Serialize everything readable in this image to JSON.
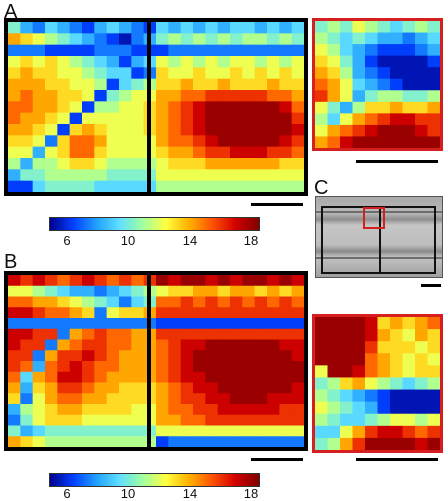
{
  "panels": {
    "a": "A",
    "b": "B",
    "c": "C"
  },
  "colorbar": {
    "ticks": [
      "6",
      "10",
      "14",
      "18"
    ],
    "tick_values": [
      6,
      10,
      14,
      18
    ],
    "range": [
      4.5,
      18.5
    ],
    "colors": [
      "#00008f",
      "#0040ff",
      "#20a0ff",
      "#60e0ff",
      "#a0ffa0",
      "#ffff40",
      "#ffb000",
      "#ff5000",
      "#d00000",
      "#800000"
    ]
  },
  "chart_data": [
    {
      "type": "heatmap",
      "panel": "A-main",
      "rows": 15,
      "cols": 24,
      "pattern": "two-region map: left with diagonal low band, right with high-value core",
      "values": [
        [
          10,
          8,
          7,
          9,
          8,
          7,
          6,
          8,
          9,
          8,
          7,
          6,
          9,
          8,
          9,
          8,
          9,
          8,
          9,
          9,
          8,
          9,
          8,
          9
        ],
        [
          14,
          13,
          12,
          11,
          10,
          9,
          8,
          7,
          6,
          5,
          7,
          8,
          10,
          11,
          10,
          11,
          10,
          11,
          10,
          11,
          11,
          10,
          11,
          10
        ],
        [
          7,
          7,
          7,
          6,
          6,
          6,
          6,
          7,
          7,
          7,
          6,
          6,
          6,
          7,
          7,
          7,
          7,
          7,
          7,
          7,
          7,
          7,
          7,
          7
        ],
        [
          12,
          13,
          12,
          13,
          12,
          11,
          10,
          9,
          8,
          6,
          8,
          9,
          12,
          11,
          12,
          11,
          12,
          11,
          12,
          12,
          11,
          12,
          11,
          12
        ],
        [
          13,
          14,
          13,
          13,
          12,
          12,
          11,
          10,
          9,
          9,
          6,
          7,
          13,
          12,
          12,
          13,
          12,
          12,
          13,
          12,
          13,
          12,
          13,
          12
        ],
        [
          14,
          14,
          14,
          13,
          13,
          12,
          12,
          11,
          6,
          9,
          10,
          11,
          13,
          13,
          14,
          13,
          13,
          14,
          13,
          13,
          13,
          14,
          13,
          13
        ],
        [
          14,
          15,
          14,
          14,
          13,
          13,
          12,
          6,
          10,
          11,
          12,
          12,
          14,
          14,
          15,
          15,
          16,
          16,
          16,
          16,
          16,
          15,
          15,
          14
        ],
        [
          15,
          15,
          14,
          14,
          13,
          12,
          6,
          11,
          11,
          12,
          12,
          13,
          14,
          15,
          16,
          17,
          18,
          18,
          18,
          18,
          18,
          18,
          17,
          15
        ],
        [
          15,
          14,
          14,
          13,
          12,
          6,
          12,
          12,
          12,
          12,
          12,
          13,
          14,
          15,
          16,
          17,
          18,
          18,
          18,
          18,
          18,
          18,
          18,
          16
        ],
        [
          14,
          14,
          13,
          12,
          6,
          13,
          14,
          13,
          12,
          12,
          12,
          13,
          14,
          15,
          16,
          17,
          18,
          18,
          18,
          18,
          18,
          18,
          18,
          17
        ],
        [
          13,
          13,
          12,
          7,
          13,
          15,
          15,
          14,
          12,
          12,
          12,
          12,
          14,
          15,
          15,
          16,
          17,
          18,
          18,
          18,
          18,
          18,
          17,
          16
        ],
        [
          12,
          12,
          8,
          12,
          13,
          15,
          15,
          13,
          12,
          12,
          12,
          12,
          13,
          14,
          14,
          15,
          16,
          16,
          17,
          17,
          17,
          16,
          16,
          15
        ],
        [
          11,
          8,
          11,
          11,
          12,
          13,
          13,
          12,
          11,
          11,
          11,
          11,
          12,
          13,
          13,
          13,
          14,
          14,
          14,
          14,
          14,
          14,
          13,
          13
        ],
        [
          8,
          10,
          10,
          11,
          11,
          11,
          11,
          11,
          10,
          10,
          10,
          10,
          12,
          12,
          12,
          12,
          12,
          12,
          12,
          12,
          12,
          12,
          12,
          12
        ],
        [
          6,
          6,
          9,
          10,
          10,
          10,
          10,
          9,
          9,
          9,
          9,
          9,
          11,
          11,
          11,
          11,
          11,
          11,
          11,
          11,
          11,
          11,
          11,
          11
        ]
      ]
    },
    {
      "type": "heatmap",
      "panel": "A-inset",
      "rows": 11,
      "cols": 10,
      "pattern": "zoomed junction: blue diagonal band crossing warmer regions",
      "values": [
        [
          10,
          11,
          10,
          12,
          11,
          10,
          9,
          10,
          11,
          10
        ],
        [
          11,
          10,
          9,
          10,
          9,
          8,
          8,
          7,
          8,
          9
        ],
        [
          12,
          11,
          9,
          8,
          7,
          6,
          6,
          6,
          7,
          8
        ],
        [
          13,
          12,
          10,
          8,
          6,
          5,
          5,
          5,
          5,
          6
        ],
        [
          14,
          13,
          11,
          8,
          7,
          6,
          5,
          5,
          5,
          5
        ],
        [
          15,
          14,
          12,
          9,
          8,
          7,
          6,
          5,
          5,
          5
        ],
        [
          16,
          14,
          12,
          8,
          10,
          11,
          11,
          10,
          10,
          11
        ],
        [
          12,
          10,
          8,
          11,
          13,
          13,
          14,
          13,
          13,
          14
        ],
        [
          11,
          9,
          12,
          14,
          15,
          16,
          17,
          17,
          16,
          16
        ],
        [
          12,
          14,
          15,
          16,
          17,
          18,
          18,
          18,
          17,
          16
        ],
        [
          14,
          15,
          17,
          18,
          18,
          18,
          18,
          18,
          18,
          18
        ]
      ]
    },
    {
      "type": "heatmap",
      "panel": "B-main",
      "rows": 16,
      "cols": 24,
      "pattern": "mostly high values with thin diagonal and horizontal low bands",
      "values": [
        [
          17,
          16,
          17,
          16,
          15,
          16,
          17,
          16,
          15,
          16,
          15,
          16,
          18,
          17,
          18,
          18,
          17,
          18,
          17,
          18,
          18,
          17,
          18,
          17
        ],
        [
          12,
          12,
          11,
          10,
          9,
          8,
          8,
          7,
          8,
          9,
          10,
          11,
          12,
          13,
          13,
          14,
          14,
          13,
          14,
          14,
          13,
          14,
          13,
          14
        ],
        [
          15,
          15,
          14,
          14,
          13,
          12,
          11,
          10,
          9,
          7,
          9,
          10,
          15,
          15,
          16,
          15,
          16,
          15,
          16,
          15,
          16,
          15,
          16,
          15
        ],
        [
          17,
          17,
          16,
          15,
          15,
          14,
          13,
          7,
          12,
          13,
          13,
          14,
          16,
          16,
          16,
          16,
          16,
          16,
          16,
          16,
          16,
          16,
          16,
          16
        ],
        [
          7,
          7,
          7,
          7,
          7,
          7,
          7,
          7,
          7,
          7,
          7,
          7,
          6,
          6,
          6,
          6,
          6,
          6,
          6,
          6,
          6,
          6,
          6,
          6
        ],
        [
          17,
          17,
          16,
          16,
          7,
          14,
          15,
          16,
          15,
          15,
          14,
          14,
          16,
          16,
          16,
          16,
          16,
          16,
          16,
          16,
          16,
          16,
          16,
          16
        ],
        [
          17,
          16,
          16,
          7,
          14,
          15,
          16,
          16,
          15,
          15,
          14,
          14,
          15,
          16,
          17,
          17,
          18,
          18,
          18,
          18,
          18,
          18,
          17,
          17
        ],
        [
          16,
          16,
          7,
          14,
          16,
          16,
          17,
          16,
          15,
          14,
          14,
          14,
          15,
          16,
          17,
          18,
          18,
          18,
          18,
          18,
          18,
          18,
          18,
          17
        ],
        [
          16,
          15,
          8,
          15,
          16,
          17,
          16,
          15,
          15,
          14,
          14,
          14,
          15,
          16,
          17,
          18,
          18,
          18,
          18,
          18,
          18,
          18,
          18,
          18
        ],
        [
          15,
          9,
          14,
          15,
          17,
          17,
          16,
          15,
          14,
          14,
          14,
          14,
          15,
          16,
          17,
          17,
          18,
          18,
          18,
          18,
          18,
          18,
          18,
          18
        ],
        [
          14,
          8,
          13,
          14,
          16,
          16,
          15,
          14,
          14,
          13,
          13,
          13,
          14,
          15,
          16,
          17,
          17,
          18,
          18,
          18,
          18,
          18,
          18,
          17
        ],
        [
          13,
          7,
          12,
          14,
          15,
          15,
          14,
          14,
          13,
          13,
          13,
          13,
          14,
          15,
          16,
          16,
          17,
          17,
          18,
          18,
          18,
          17,
          17,
          17
        ],
        [
          8,
          11,
          12,
          13,
          14,
          14,
          13,
          13,
          13,
          13,
          12,
          12,
          14,
          15,
          15,
          16,
          16,
          17,
          17,
          17,
          17,
          17,
          16,
          16
        ],
        [
          7,
          10,
          12,
          13,
          13,
          13,
          12,
          12,
          12,
          12,
          12,
          12,
          14,
          14,
          15,
          15,
          16,
          16,
          16,
          16,
          16,
          16,
          16,
          16
        ],
        [
          10,
          8,
          9,
          10,
          10,
          10,
          10,
          10,
          10,
          10,
          10,
          10,
          12,
          12,
          12,
          12,
          12,
          12,
          12,
          12,
          12,
          12,
          12,
          12
        ],
        [
          14,
          13,
          12,
          11,
          11,
          11,
          11,
          11,
          11,
          11,
          11,
          11,
          6,
          7,
          7,
          7,
          7,
          7,
          7,
          7,
          7,
          7,
          7,
          7
        ]
      ]
    },
    {
      "type": "heatmap",
      "panel": "B-inset",
      "rows": 11,
      "cols": 10,
      "pattern": "zoomed junction: dark red blocks separated by a blue band",
      "values": [
        [
          18,
          18,
          18,
          18,
          17,
          13,
          14,
          13,
          14,
          15
        ],
        [
          18,
          18,
          18,
          18,
          17,
          14,
          13,
          12,
          14,
          13
        ],
        [
          18,
          18,
          18,
          18,
          16,
          13,
          13,
          13,
          12,
          13
        ],
        [
          18,
          18,
          18,
          18,
          15,
          14,
          13,
          12,
          13,
          12
        ],
        [
          12,
          18,
          18,
          17,
          15,
          14,
          13,
          12,
          13,
          13
        ],
        [
          10,
          11,
          13,
          14,
          12,
          11,
          10,
          9,
          10,
          11
        ],
        [
          11,
          10,
          9,
          8,
          7,
          6,
          5,
          5,
          5,
          5
        ],
        [
          12,
          11,
          10,
          9,
          8,
          6,
          5,
          5,
          5,
          5
        ],
        [
          11,
          10,
          9,
          9,
          10,
          11,
          12,
          12,
          11,
          12
        ],
        [
          9,
          9,
          12,
          14,
          16,
          17,
          17,
          16,
          15,
          16
        ],
        [
          10,
          11,
          14,
          16,
          18,
          18,
          18,
          18,
          17,
          18
        ]
      ]
    }
  ]
}
